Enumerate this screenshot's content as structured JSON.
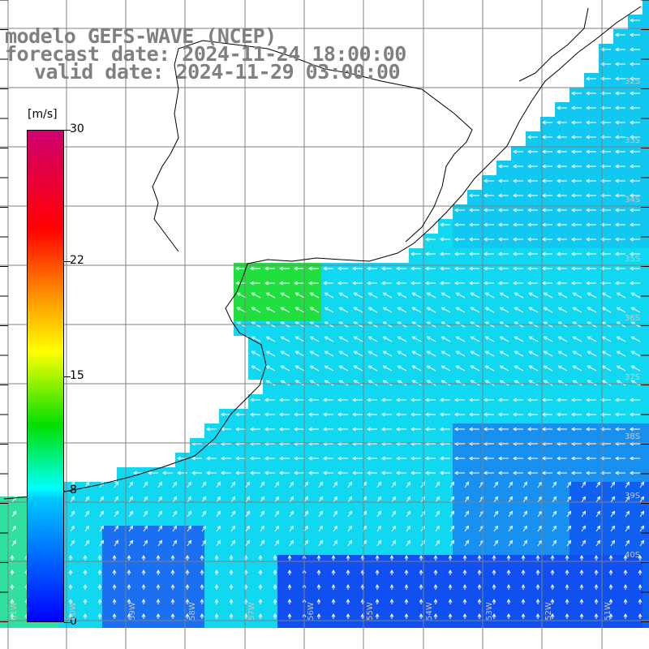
{
  "title": {
    "line1": "modelo GEFS-WAVE (NCEP)",
    "line2": "forecast date: 2024-11-24 18:00:00",
    "line3": "valid date: 2024-11-29 03:00:00"
  },
  "colorbar": {
    "unit": "[m/s]",
    "ticks": [
      {
        "value": 30,
        "label": "30"
      },
      {
        "value": 22,
        "label": "22"
      },
      {
        "value": 15,
        "label": "15"
      },
      {
        "value": 8,
        "label": "8"
      },
      {
        "value": 0,
        "label": "0"
      }
    ]
  },
  "lat_labels": [
    "32S",
    "33S",
    "34S",
    "35S",
    "36S",
    "37S",
    "38S",
    "39S",
    "40S"
  ],
  "lon_labels": [
    "61W",
    "60W",
    "59W",
    "58W",
    "57W",
    "56W",
    "55W",
    "54W",
    "53W",
    "52W",
    "51W"
  ],
  "colors": {
    "land": "#ffffff",
    "grid": "#808080",
    "coast": "#000000",
    "arrow": "#ffffff"
  }
}
